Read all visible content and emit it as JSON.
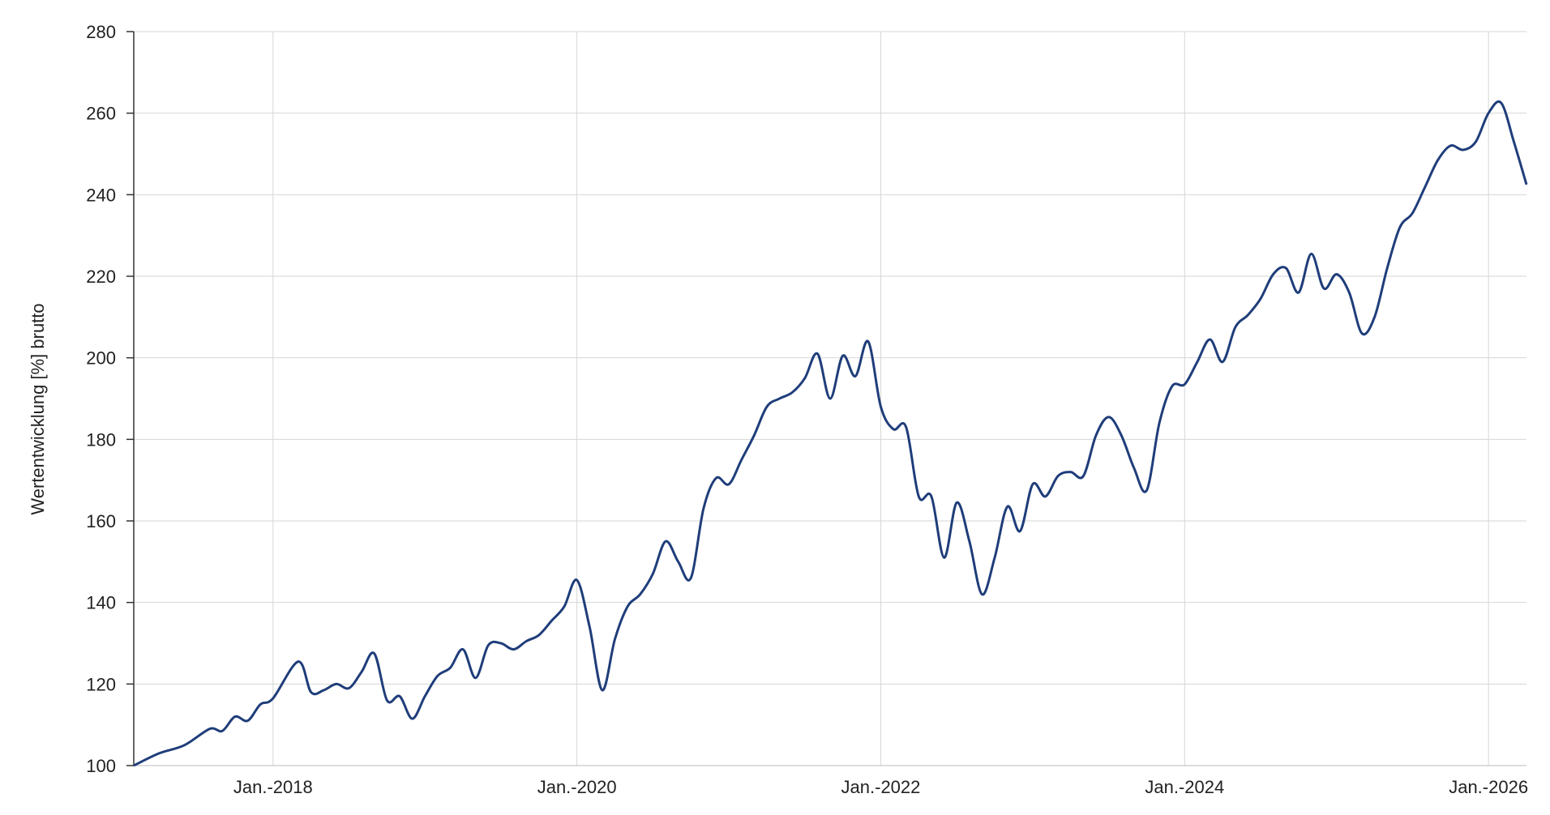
{
  "chart_data": {
    "type": "line",
    "title": "",
    "xlabel": "",
    "ylabel": "Wertentwicklung [%] brutto",
    "ylim": [
      100,
      280
    ],
    "xlim": [
      "2017-02",
      "2026-04"
    ],
    "grid": true,
    "yticks": [
      100,
      120,
      140,
      160,
      180,
      200,
      220,
      240,
      260,
      280
    ],
    "xticks": [
      {
        "date": "2018-01",
        "label": "Jan.-2018"
      },
      {
        "date": "2020-01",
        "label": "Jan.-2020"
      },
      {
        "date": "2022-01",
        "label": "Jan.-2022"
      },
      {
        "date": "2024-01",
        "label": "Jan.-2024"
      },
      {
        "date": "2026-01",
        "label": "Jan.-2026"
      }
    ],
    "line_color": "#1f3d7a",
    "grid_color": "#d6d6d6",
    "series": [
      {
        "x": [
          "2017-02",
          "2017-04",
          "2017-06",
          "2017-08",
          "2017-09",
          "2017-10",
          "2017-11",
          "2017-12",
          "2018-01",
          "2018-03",
          "2018-04",
          "2018-05",
          "2018-06",
          "2018-07",
          "2018-08",
          "2018-09",
          "2018-10",
          "2018-11",
          "2018-12",
          "2019-01",
          "2019-02",
          "2019-03",
          "2019-04",
          "2019-05",
          "2019-06",
          "2019-07",
          "2019-08",
          "2019-09",
          "2019-10",
          "2019-11",
          "2019-12",
          "2020-01",
          "2020-02",
          "2020-03",
          "2020-04",
          "2020-05",
          "2020-06",
          "2020-07",
          "2020-08",
          "2020-09",
          "2020-10",
          "2020-11",
          "2020-12",
          "2021-01",
          "2021-02",
          "2021-03",
          "2021-04",
          "2021-05",
          "2021-06",
          "2021-07",
          "2021-08",
          "2021-09",
          "2021-10",
          "2021-11",
          "2021-12",
          "2022-01",
          "2022-02",
          "2022-03",
          "2022-04",
          "2022-05",
          "2022-06",
          "2022-07",
          "2022-08",
          "2022-09",
          "2022-10",
          "2022-11",
          "2022-12",
          "2023-01",
          "2023-02",
          "2023-03",
          "2023-04",
          "2023-05",
          "2023-06",
          "2023-07",
          "2023-08",
          "2023-09",
          "2023-10",
          "2023-11",
          "2023-12",
          "2024-01",
          "2024-02",
          "2024-03",
          "2024-04",
          "2024-05",
          "2024-06",
          "2024-07",
          "2024-08",
          "2024-09",
          "2024-10",
          "2024-11",
          "2024-12",
          "2025-01",
          "2025-02",
          "2025-03",
          "2025-04",
          "2025-05",
          "2025-06",
          "2025-07",
          "2025-08",
          "2025-09",
          "2025-10",
          "2025-11",
          "2025-12",
          "2026-01",
          "2026-02",
          "2026-03",
          "2026-04"
        ],
        "y": [
          100,
          103,
          105,
          109,
          108.5,
          112,
          111,
          115,
          116.5,
          125.5,
          118,
          118.5,
          120,
          119,
          123,
          127.5,
          116,
          117,
          111.5,
          117,
          122,
          124,
          128.5,
          121.5,
          129.5,
          130,
          128.5,
          130.5,
          132,
          135.5,
          139,
          145.5,
          134,
          118.5,
          131,
          139,
          142,
          147,
          155,
          150,
          146,
          163,
          170.5,
          169,
          175,
          181,
          188,
          190,
          191.5,
          195,
          201,
          190,
          200.5,
          195.5,
          204,
          188,
          182.5,
          183,
          166,
          166,
          151,
          164.5,
          155,
          142,
          151,
          163.5,
          157.5,
          169,
          166,
          171,
          172,
          171,
          181,
          185.5,
          181,
          173,
          167.5,
          184,
          193,
          193.5,
          199,
          204.5,
          199,
          207.5,
          210.5,
          214.5,
          220.5,
          222,
          216,
          225.5,
          217,
          220.5,
          216,
          206,
          210,
          222,
          232,
          235.5,
          242,
          248.5,
          252,
          251,
          253,
          260,
          262.5,
          253,
          242.5
        ]
      }
    ]
  }
}
